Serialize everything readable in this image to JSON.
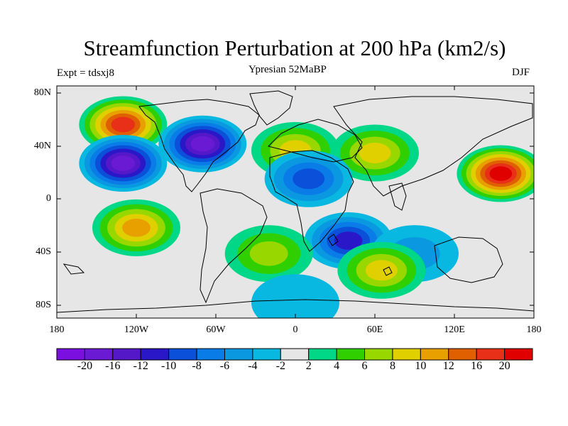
{
  "title": "Streamfunction Perturbation at 200 hPa (km2/s)",
  "experiment_label": "Expt = tdsxj8",
  "subtitle": "Ypresian  52MaBP",
  "season": "DJF",
  "latitude_ticks": [
    "80N",
    "40N",
    "0",
    "40S",
    "80S"
  ],
  "longitude_ticks": [
    "180",
    "120W",
    "60W",
    "0",
    "60E",
    "120E",
    "180"
  ],
  "colorbar": {
    "labels": [
      "-20",
      "-16",
      "-12",
      "-10",
      "-8",
      "-6",
      "-4",
      "-2",
      "2",
      "4",
      "6",
      "8",
      "10",
      "12",
      "16",
      "20"
    ],
    "colors": [
      "#7a0fe0",
      "#6a1ad2",
      "#5418c8",
      "#2a18c8",
      "#0a50d8",
      "#0a7ce8",
      "#0a98e0",
      "#08b8e0",
      "#e6e6e6",
      "#00d888",
      "#30d000",
      "#98d800",
      "#e0d000",
      "#e8a000",
      "#e06000",
      "#e83018",
      "#e00000"
    ]
  },
  "chart_data": {
    "type": "heatmap",
    "title": "Streamfunction Perturbation at 200 hPa (km2/s)",
    "subtitle": "Ypresian  52MaBP",
    "season": "DJF",
    "units": "km2/s",
    "xlim": [
      -180,
      180
    ],
    "ylim": [
      -90,
      90
    ],
    "levels": [
      -20,
      -16,
      -12,
      -10,
      -8,
      -6,
      -4,
      -2,
      2,
      4,
      6,
      8,
      10,
      12,
      16,
      20
    ],
    "features": [
      {
        "lon": -130,
        "lat": 60,
        "value": 18
      },
      {
        "lon": -130,
        "lat": 30,
        "value": -20
      },
      {
        "lon": -70,
        "lat": 45,
        "value": -18
      },
      {
        "lon": 0,
        "lat": 40,
        "value": 9
      },
      {
        "lon": 60,
        "lat": 38,
        "value": 8
      },
      {
        "lon": 10,
        "lat": 18,
        "value": -10
      },
      {
        "lon": 155,
        "lat": 22,
        "value": 20
      },
      {
        "lon": -120,
        "lat": -20,
        "value": 10
      },
      {
        "lon": 40,
        "lat": -30,
        "value": -12
      },
      {
        "lon": 90,
        "lat": -40,
        "value": -6
      },
      {
        "lon": 65,
        "lat": -53,
        "value": 9
      },
      {
        "lon": -20,
        "lat": -40,
        "value": 6
      },
      {
        "lon": 0,
        "lat": -78,
        "value": -4
      }
    ]
  }
}
